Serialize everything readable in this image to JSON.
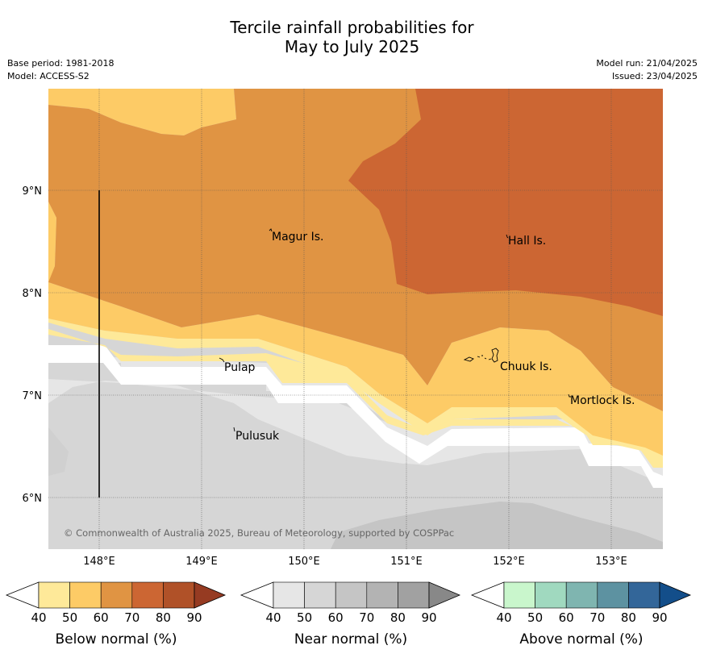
{
  "title": {
    "line1": "Tercile rainfall probabilities for",
    "line2": "May to July 2025"
  },
  "meta": {
    "base_period": "Base period: 1981-2018",
    "model": "Model: ACCESS-S2",
    "model_run": "Model run: 21/04/2025",
    "issued": "Issued: 23/04/2025"
  },
  "map": {
    "lon_ticks": [
      "148°E",
      "149°E",
      "150°E",
      "151°E",
      "152°E",
      "153°E"
    ],
    "lat_ticks": [
      "9°N",
      "8°N",
      "7°N",
      "6°N"
    ],
    "places": [
      "Magur Is.",
      "Hall Is.",
      "Pulap",
      "Chuuk Is.",
      "Mortlock Is.",
      "Pulusuk"
    ],
    "copyright": "© Commonwealth of Australia 2025, Bureau of Meteorology, supported by COSPPac"
  },
  "colorbars": [
    {
      "label": "Below normal (%)",
      "ticks": [
        "40",
        "50",
        "60",
        "70",
        "80",
        "90"
      ],
      "colors": [
        "#ffffff",
        "#fee999",
        "#fdcb66",
        "#e09443",
        "#cc6633",
        "#b05128",
        "#963b22"
      ]
    },
    {
      "label": "Near normal (%)",
      "ticks": [
        "40",
        "50",
        "60",
        "70",
        "80",
        "90"
      ],
      "colors": [
        "#ffffff",
        "#e6e6e6",
        "#d6d6d6",
        "#c5c5c5",
        "#b3b3b3",
        "#a1a1a1",
        "#888888"
      ]
    },
    {
      "label": "Above normal (%)",
      "ticks": [
        "40",
        "50",
        "60",
        "70",
        "80",
        "90"
      ],
      "colors": [
        "#ffffff",
        "#c9f6cc",
        "#a0d9bf",
        "#7fb5b0",
        "#5d92a1",
        "#336699",
        "#134e8a"
      ]
    }
  ]
}
